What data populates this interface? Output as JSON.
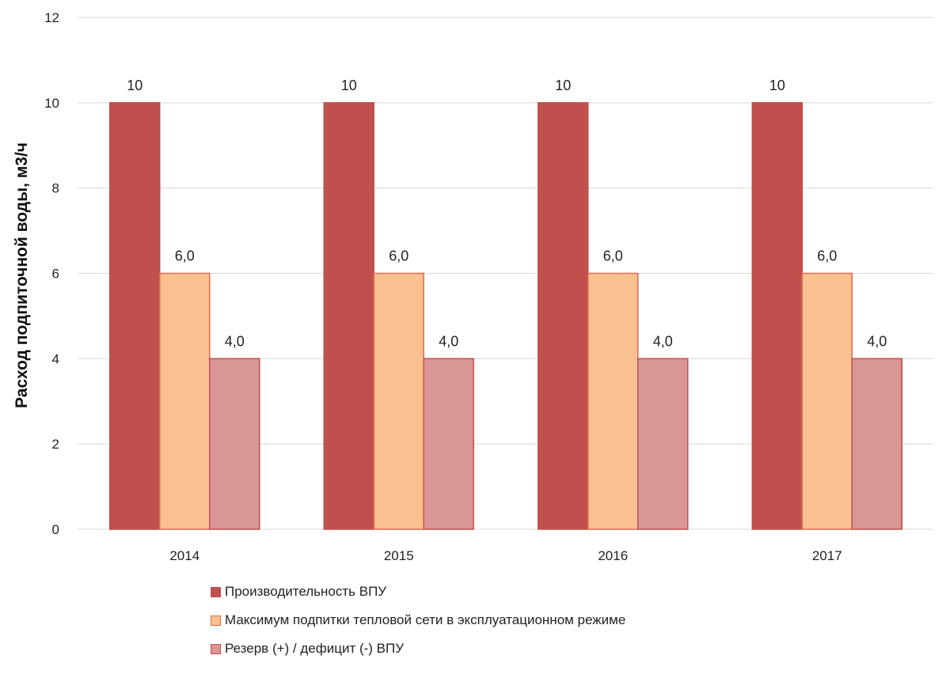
{
  "chart_data": {
    "type": "bar",
    "categories": [
      "2014",
      "2015",
      "2016",
      "2017"
    ],
    "series": [
      {
        "name": "Производительность ВПУ",
        "values": [
          10,
          10,
          10,
          10
        ],
        "labels": [
          "10",
          "10",
          "10",
          "10"
        ],
        "color": "#c0504d",
        "border": "#c0504d"
      },
      {
        "name": "Максимум подпитки тепловой сети в эксплуатационном режиме",
        "values": [
          6.0,
          6.0,
          6.0,
          6.0
        ],
        "labels": [
          "6,0",
          "6,0",
          "6,0",
          "6,0"
        ],
        "color": "#fac090",
        "border": "#e06a50"
      },
      {
        "name": "Резерв (+) / дефицит (-) ВПУ",
        "values": [
          4.0,
          4.0,
          4.0,
          4.0
        ],
        "labels": [
          "4,0",
          "4,0",
          "4,0",
          "4,0"
        ],
        "color": "#d99694",
        "border": "#c0504d"
      }
    ],
    "title": "",
    "xlabel": "",
    "ylabel": "Расход подпиточной воды, м3/ч",
    "ylim": [
      0,
      12
    ],
    "yticks": [
      0,
      2,
      4,
      6,
      8,
      10,
      12
    ],
    "ytick_labels": [
      "0",
      "2",
      "4",
      "6",
      "8",
      "10",
      "12"
    ],
    "grid": true,
    "grid_color": "#d9d9d9",
    "legend_position": "bottom"
  }
}
